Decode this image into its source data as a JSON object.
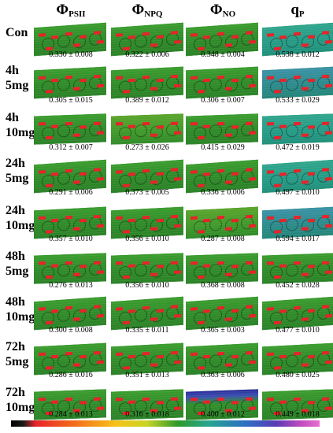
{
  "columns": [
    {
      "symbol": "Φ",
      "sub": "PSII"
    },
    {
      "symbol": "Φ",
      "sub": "NPQ"
    },
    {
      "symbol": "Φ",
      "sub": "NO"
    },
    {
      "symbol": "q",
      "sub": "P"
    }
  ],
  "rows": [
    {
      "label_line1": "Con",
      "label_line2": "",
      "values": [
        "0.330 ± 0.008",
        "0.322 ± 0.006",
        "0.348 ± 0.004",
        "0.538 ± 0.012"
      ]
    },
    {
      "label_line1": "4h",
      "label_line2": "5mg",
      "values": [
        "0.305 ± 0.015",
        "0.389 ± 0.012",
        "0.306 ± 0.007",
        "0.533 ± 0.029"
      ]
    },
    {
      "label_line1": "4h",
      "label_line2": "10mg",
      "values": [
        "0.312 ± 0.007",
        "0.273 ± 0.026",
        "0.415 ± 0.029",
        "0.472 ± 0.019"
      ]
    },
    {
      "label_line1": "24h",
      "label_line2": "5mg",
      "values": [
        "0.291 ± 0.006",
        "0.373 ± 0.005",
        "0.336 ± 0.006",
        "0.497 ± 0.010"
      ]
    },
    {
      "label_line1": "24h",
      "label_line2": "10mg",
      "values": [
        "0.357 ± 0.010",
        "0.356 ± 0.010",
        "0.287 ± 0.008",
        "0.594 ± 0.017"
      ]
    },
    {
      "label_line1": "48h",
      "label_line2": "5mg",
      "values": [
        "0.276 ± 0.013",
        "0.356 ± 0.010",
        "0.368 ± 0.008",
        "0.452 ± 0.028"
      ]
    },
    {
      "label_line1": "48h",
      "label_line2": "10mg",
      "values": [
        "0.300 ± 0.008",
        "0.335 ± 0.011",
        "0.365 ± 0.003",
        "0.477 ± 0.010"
      ]
    },
    {
      "label_line1": "72h",
      "label_line2": "5mg",
      "values": [
        "0.286 ± 0.016",
        "0.351 ± 0.013",
        "0.363 ± 0.006",
        "0.480 ± 0.025"
      ]
    },
    {
      "label_line1": "72h",
      "label_line2": "10mg",
      "values": [
        "0.284 ± 0.013",
        "0.316 ± 0.018",
        "0.400 ± 0.012",
        "0.449 ± 0.018"
      ]
    }
  ],
  "colors": {
    "leaf_green": "#2f8f2a",
    "leaf_teal": "#249a84",
    "marker_red": "#e8232a"
  }
}
